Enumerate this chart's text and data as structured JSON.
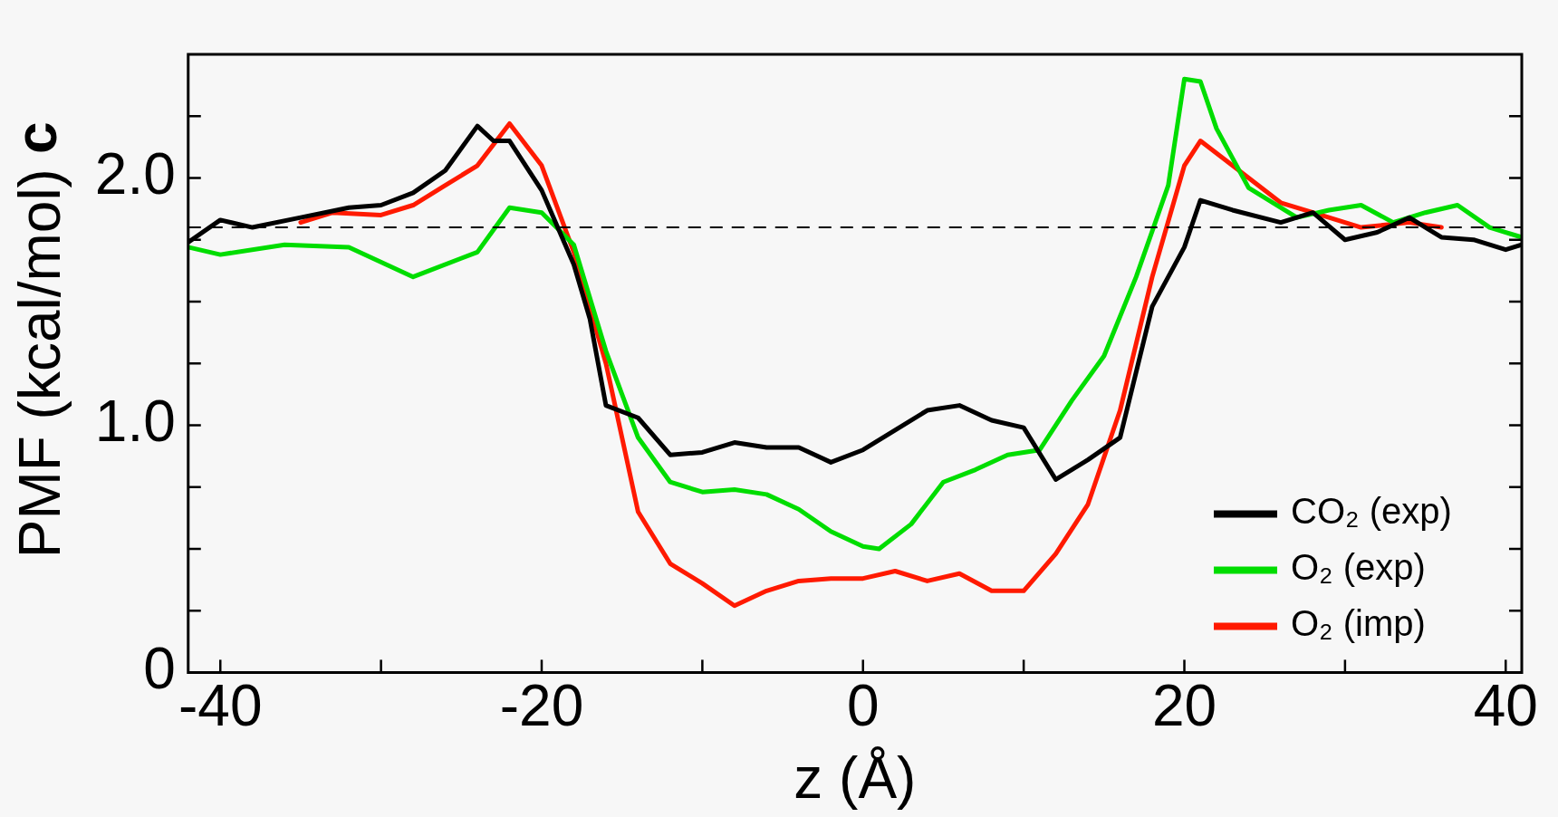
{
  "chart_data": {
    "type": "line",
    "title": "c",
    "xlabel": "z (Å)",
    "ylabel": "PMF (kcal/mol)",
    "xlim": [
      -42,
      41
    ],
    "xticks": [
      {
        "value": -40,
        "label": "-40"
      },
      {
        "value": -30,
        "label": null
      },
      {
        "value": -20,
        "label": "-20"
      },
      {
        "value": -10,
        "label": null
      },
      {
        "value": 0,
        "label": "0"
      },
      {
        "value": 10,
        "label": null
      },
      {
        "value": 20,
        "label": "20"
      },
      {
        "value": 30,
        "label": null
      },
      {
        "value": 40,
        "label": "40"
      }
    ],
    "ylim": [
      0,
      2.5
    ],
    "yticks": [
      0,
      {
        "value": 0.25,
        "label": null
      },
      {
        "value": 0.5,
        "label": null
      },
      {
        "value": 0.75,
        "label": null
      },
      {
        "value": 1,
        "label": "1.0"
      },
      {
        "value": 1.25,
        "label": null
      },
      {
        "value": 1.5,
        "label": null
      },
      {
        "value": 1.75,
        "label": null
      },
      {
        "value": 2,
        "label": "2.0"
      },
      {
        "value": 2.25,
        "label": null
      }
    ],
    "grid": false,
    "legend": "bottom right",
    "marker": "none",
    "line_style": "solid",
    "ref_lines": [
      {
        "axis": "y",
        "value": 1.8,
        "color": "#000000",
        "line_style": "dashed"
      }
    ],
    "series": [
      {
        "name": "CO₂ (exp)",
        "color": "#000000",
        "x": [
          -42,
          -40,
          -38,
          -35,
          -32,
          -30,
          -28,
          -26,
          -24,
          -23,
          -22,
          -20,
          -18,
          -17,
          -16,
          -14,
          -12,
          -10,
          -8,
          -6,
          -4,
          -2,
          0,
          2,
          4,
          6,
          8,
          10,
          12,
          14,
          16,
          18,
          20,
          21,
          23,
          26,
          28,
          30,
          32,
          34,
          36,
          38,
          40,
          41
        ],
        "values": [
          1.74,
          1.83,
          1.8,
          1.84,
          1.88,
          1.89,
          1.94,
          2.03,
          2.21,
          2.15,
          2.15,
          1.95,
          1.65,
          1.43,
          1.08,
          1.03,
          0.88,
          0.89,
          0.93,
          0.91,
          0.91,
          0.85,
          0.9,
          0.98,
          1.06,
          1.08,
          1.02,
          0.99,
          0.78,
          0.86,
          0.95,
          1.48,
          1.72,
          1.91,
          1.87,
          1.82,
          1.86,
          1.75,
          1.78,
          1.84,
          1.76,
          1.75,
          1.71,
          1.73
        ]
      },
      {
        "name": "O₂ (exp)",
        "color": "#00dd00",
        "x": [
          -42,
          -40,
          -36,
          -32,
          -28,
          -24,
          -22,
          -20,
          -18,
          -16,
          -14,
          -12,
          -10,
          -8,
          -6,
          -4,
          -2,
          0,
          1,
          3,
          5,
          7,
          9,
          11,
          13,
          15,
          17,
          19,
          20,
          21,
          22,
          24,
          27,
          29,
          31,
          33,
          35,
          37,
          39,
          41
        ],
        "values": [
          1.72,
          1.69,
          1.73,
          1.72,
          1.6,
          1.7,
          1.88,
          1.86,
          1.73,
          1.3,
          0.95,
          0.77,
          0.73,
          0.74,
          0.72,
          0.66,
          0.57,
          0.51,
          0.5,
          0.6,
          0.77,
          0.82,
          0.88,
          0.9,
          1.1,
          1.28,
          1.6,
          1.97,
          2.4,
          2.39,
          2.2,
          1.96,
          1.84,
          1.87,
          1.89,
          1.82,
          1.86,
          1.89,
          1.8,
          1.76
        ]
      },
      {
        "name": "O₂ (imp)",
        "color": "#ff1a00",
        "x": [
          -35,
          -33,
          -30,
          -28,
          -26,
          -24,
          -22,
          -20,
          -18,
          -16,
          -14,
          -12,
          -10,
          -8,
          -6,
          -4,
          -2,
          0,
          2,
          4,
          6,
          8,
          10,
          12,
          14,
          16,
          18,
          20,
          21,
          23,
          26,
          28,
          31,
          34,
          36
        ],
        "values": [
          1.82,
          1.86,
          1.85,
          1.89,
          1.97,
          2.05,
          2.22,
          2.05,
          1.7,
          1.25,
          0.65,
          0.44,
          0.36,
          0.27,
          0.33,
          0.37,
          0.38,
          0.38,
          0.41,
          0.37,
          0.4,
          0.33,
          0.33,
          0.48,
          0.68,
          1.06,
          1.6,
          2.05,
          2.15,
          2.05,
          1.9,
          1.86,
          1.8,
          1.82,
          1.8
        ]
      }
    ]
  }
}
